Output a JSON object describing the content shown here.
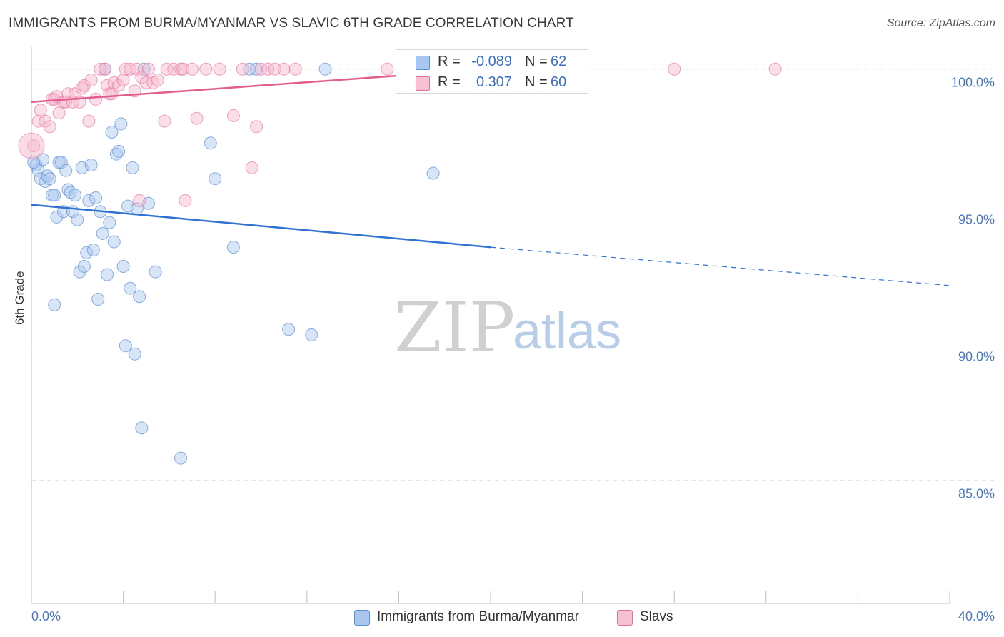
{
  "title": "IMMIGRANTS FROM BURMA/MYANMAR VS SLAVIC 6TH GRADE CORRELATION CHART",
  "source": "Source: ZipAtlas.com",
  "colors": {
    "blue": "#5b8fd6",
    "blue_fill": "#a9c6ee",
    "pink": "#e46f9a",
    "pink_fill": "#f5b6cb",
    "tick_text": "#4a78c8"
  },
  "legend": {
    "rows": [
      {
        "r_label": "R =",
        "r_value": "-0.089",
        "n_label": "N =",
        "n_value": "62"
      },
      {
        "r_label": "R =",
        "r_value": "0.307",
        "n_label": "N =",
        "n_value": "60"
      }
    ]
  },
  "bottom_legend": {
    "series1": "Immigrants from Burma/Myanmar",
    "series2": "Slavs"
  },
  "chart_data": {
    "type": "scatter",
    "title": "IMMIGRANTS FROM BURMA/MYANMAR VS SLAVIC 6TH GRADE CORRELATION CHART",
    "xlabel": "",
    "ylabel": "6th Grade",
    "xlim": [
      0,
      40
    ],
    "ylim": [
      80.5,
      100.8
    ],
    "x_tick_labels": [
      "0.0%",
      "40.0%"
    ],
    "y_ticks": [
      85,
      90,
      95,
      100
    ],
    "y_tick_labels": [
      "85.0%",
      "90.0%",
      "95.0%",
      "100.0%"
    ],
    "watermark": {
      "zip": "ZIP",
      "atlas": "atlas"
    },
    "series": [
      {
        "name": "Immigrants from Burma/Myanmar",
        "color": "#5b8fd6",
        "R": -0.089,
        "N": 62,
        "trend": {
          "x0": 0,
          "y0": 95.05,
          "x1": 20.0,
          "y1": 93.5,
          "dash_to_x": 40,
          "dash_to_y": 92.1
        },
        "points": [
          [
            0.2,
            96.5
          ],
          [
            0.3,
            96.3
          ],
          [
            0.4,
            96.0
          ],
          [
            0.5,
            96.7
          ],
          [
            0.6,
            95.9
          ],
          [
            0.7,
            96.1
          ],
          [
            0.8,
            96.0
          ],
          [
            0.9,
            95.4
          ],
          [
            1.0,
            95.4
          ],
          [
            1.1,
            94.6
          ],
          [
            1.2,
            96.6
          ],
          [
            1.3,
            96.6
          ],
          [
            1.4,
            94.8
          ],
          [
            1.5,
            96.3
          ],
          [
            1.6,
            95.6
          ],
          [
            1.7,
            95.5
          ],
          [
            1.8,
            94.8
          ],
          [
            1.9,
            95.4
          ],
          [
            2.0,
            94.5
          ],
          [
            2.1,
            92.6
          ],
          [
            2.2,
            96.4
          ],
          [
            2.3,
            92.8
          ],
          [
            2.4,
            93.3
          ],
          [
            2.5,
            95.2
          ],
          [
            2.6,
            96.5
          ],
          [
            2.7,
            93.4
          ],
          [
            2.8,
            95.3
          ],
          [
            2.9,
            91.6
          ],
          [
            3.0,
            94.8
          ],
          [
            3.1,
            94.0
          ],
          [
            3.2,
            100.0
          ],
          [
            3.3,
            92.5
          ],
          [
            3.4,
            94.4
          ],
          [
            3.5,
            97.7
          ],
          [
            3.6,
            93.7
          ],
          [
            3.7,
            96.9
          ],
          [
            3.8,
            97.0
          ],
          [
            3.9,
            98.0
          ],
          [
            4.0,
            92.8
          ],
          [
            4.1,
            89.9
          ],
          [
            4.2,
            95.0
          ],
          [
            4.3,
            92.0
          ],
          [
            4.4,
            96.4
          ],
          [
            4.5,
            89.6
          ],
          [
            4.6,
            94.9
          ],
          [
            4.7,
            91.7
          ],
          [
            4.8,
            86.9
          ],
          [
            4.9,
            100.0
          ],
          [
            5.1,
            95.1
          ],
          [
            5.4,
            92.6
          ],
          [
            6.5,
            85.8
          ],
          [
            7.8,
            97.3
          ],
          [
            8.0,
            96.0
          ],
          [
            8.8,
            93.5
          ],
          [
            9.5,
            100.0
          ],
          [
            11.2,
            90.5
          ],
          [
            12.2,
            90.3
          ],
          [
            12.8,
            100.0
          ],
          [
            17.5,
            96.2
          ],
          [
            0.1,
            96.6
          ],
          [
            1.0,
            91.4
          ],
          [
            9.8,
            100.0
          ]
        ]
      },
      {
        "name": "Slavs",
        "color": "#e46f9a",
        "R": 0.307,
        "N": 60,
        "trend": {
          "x0": 0,
          "y0": 98.8,
          "x1": 20.0,
          "y1": 100.0
        },
        "points": [
          [
            0.1,
            97.2
          ],
          [
            0.3,
            98.1
          ],
          [
            0.4,
            98.5
          ],
          [
            0.6,
            98.1
          ],
          [
            0.8,
            97.9
          ],
          [
            0.9,
            98.9
          ],
          [
            1.0,
            98.9
          ],
          [
            1.1,
            99.0
          ],
          [
            1.2,
            98.4
          ],
          [
            1.4,
            98.8
          ],
          [
            1.5,
            98.8
          ],
          [
            1.6,
            99.1
          ],
          [
            1.8,
            98.8
          ],
          [
            1.9,
            99.1
          ],
          [
            2.1,
            98.8
          ],
          [
            2.2,
            99.3
          ],
          [
            2.3,
            99.4
          ],
          [
            2.5,
            98.1
          ],
          [
            2.6,
            99.6
          ],
          [
            2.8,
            98.9
          ],
          [
            3.0,
            100.0
          ],
          [
            3.2,
            100.0
          ],
          [
            3.3,
            99.4
          ],
          [
            3.4,
            99.1
          ],
          [
            3.5,
            99.1
          ],
          [
            3.6,
            99.5
          ],
          [
            3.8,
            99.4
          ],
          [
            4.0,
            99.6
          ],
          [
            4.1,
            100.0
          ],
          [
            4.3,
            100.0
          ],
          [
            4.5,
            99.2
          ],
          [
            4.6,
            100.0
          ],
          [
            4.7,
            95.2
          ],
          [
            4.8,
            99.7
          ],
          [
            5.0,
            99.5
          ],
          [
            5.1,
            100.0
          ],
          [
            5.3,
            99.5
          ],
          [
            5.5,
            99.6
          ],
          [
            5.8,
            98.1
          ],
          [
            5.9,
            100.0
          ],
          [
            6.2,
            100.0
          ],
          [
            6.5,
            100.0
          ],
          [
            6.6,
            100.0
          ],
          [
            6.7,
            95.2
          ],
          [
            7.0,
            100.0
          ],
          [
            7.2,
            98.2
          ],
          [
            7.6,
            100.0
          ],
          [
            8.2,
            100.0
          ],
          [
            8.8,
            98.3
          ],
          [
            9.2,
            100.0
          ],
          [
            9.6,
            96.4
          ],
          [
            9.8,
            97.9
          ],
          [
            10.0,
            100.0
          ],
          [
            10.3,
            100.0
          ],
          [
            10.6,
            100.0
          ],
          [
            11.0,
            100.0
          ],
          [
            11.5,
            100.0
          ],
          [
            15.5,
            100.0
          ],
          [
            28.0,
            100.0
          ],
          [
            32.4,
            100.0
          ]
        ]
      }
    ]
  }
}
